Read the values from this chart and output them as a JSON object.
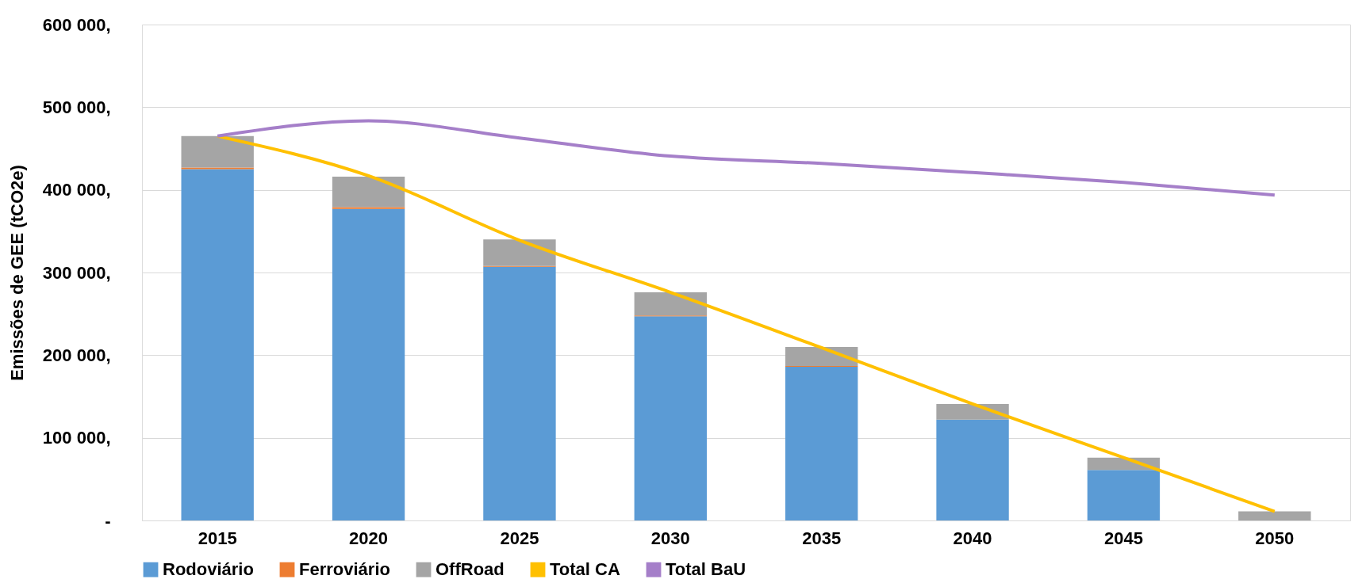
{
  "chart_data": {
    "type": "bar",
    "stacked": true,
    "ylabel": "Emissões de GEE (tCO2e)",
    "categories": [
      "2015",
      "2020",
      "2025",
      "2030",
      "2035",
      "2040",
      "2045",
      "2050"
    ],
    "series": [
      {
        "name": "Rodoviário",
        "color": "#5b9bd5",
        "values": [
          425000,
          377000,
          307000,
          247000,
          186000,
          122000,
          61000,
          0
        ]
      },
      {
        "name": "Ferroviário",
        "color": "#ed7d31",
        "values": [
          2000,
          2000,
          1000,
          1000,
          1000,
          0,
          0,
          0
        ]
      },
      {
        "name": "OffRoad",
        "color": "#a5a5a5",
        "values": [
          38000,
          37000,
          32000,
          28000,
          23000,
          19000,
          15000,
          11000
        ]
      },
      {
        "name": "Total CA",
        "type": "line",
        "color": "#ffc000",
        "values": [
          465000,
          417000,
          339000,
          276000,
          209000,
          141000,
          76000,
          11000
        ]
      },
      {
        "name": "Total BaU",
        "type": "line",
        "color": "#a57fc9",
        "values": [
          465000,
          483500,
          462700,
          440800,
          432000,
          421000,
          409000,
          393600
        ]
      }
    ],
    "ylim": [
      0,
      600000
    ],
    "yticks": [
      {
        "value": 0,
        "label": "-"
      },
      {
        "value": 100000,
        "label": "100 000,"
      },
      {
        "value": 200000,
        "label": "200 000,"
      },
      {
        "value": 300000,
        "label": "300 000,"
      },
      {
        "value": 400000,
        "label": "400 000,"
      },
      {
        "value": 500000,
        "label": "500 000,"
      },
      {
        "value": 600000,
        "label": "600 000,"
      }
    ],
    "grid": "y",
    "legend": "bottom",
    "marker": "none"
  }
}
